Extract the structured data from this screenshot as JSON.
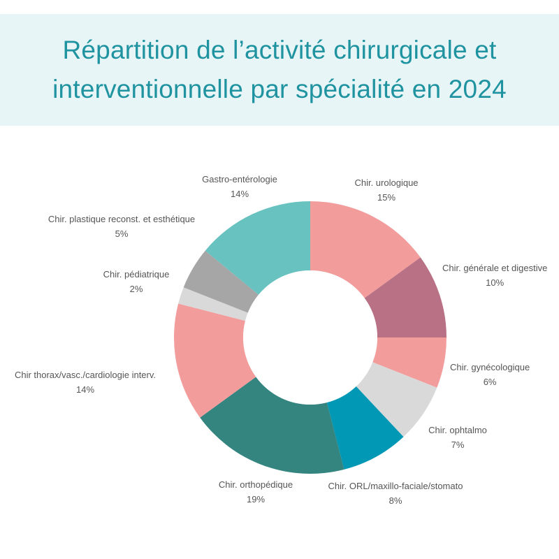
{
  "chart_data": {
    "type": "pie",
    "title": "Répartition de l’activité chirurgicale et interventionnelle par spécialité en 2024",
    "donut": true,
    "legend": "none",
    "slices": [
      {
        "label": "Chir. urologique",
        "value": 15,
        "value_label": "15%",
        "color": "#f29c9c"
      },
      {
        "label": "Chir. générale et digestive",
        "value": 10,
        "value_label": "10%",
        "color": "#b97285"
      },
      {
        "label": "Chir. gynécologique",
        "value": 6,
        "value_label": "6%",
        "color": "#f29c9c"
      },
      {
        "label": "Chir. ophtalmo",
        "value": 7,
        "value_label": "7%",
        "color": "#d9d9d9"
      },
      {
        "label": "Chir. ORL/maxillo-faciale/stomato",
        "value": 8,
        "value_label": "8%",
        "color": "#0098b4"
      },
      {
        "label": "Chir. orthopédique",
        "value": 19,
        "value_label": "19%",
        "color": "#348480"
      },
      {
        "label": "Chir thorax/vasc./cardiologie interv.",
        "value": 14,
        "value_label": "14%",
        "color": "#f29c9c"
      },
      {
        "label": "Chir. pédiatrique",
        "value": 2,
        "value_label": "2%",
        "color": "#d9d9d9"
      },
      {
        "label": "Chir. plastique reconst. et esthétique",
        "value": 5,
        "value_label": "5%",
        "color": "#a6a6a6"
      },
      {
        "label": "Gastro-entérologie",
        "value": 14,
        "value_label": "14%",
        "color": "#68c2c0"
      }
    ]
  }
}
